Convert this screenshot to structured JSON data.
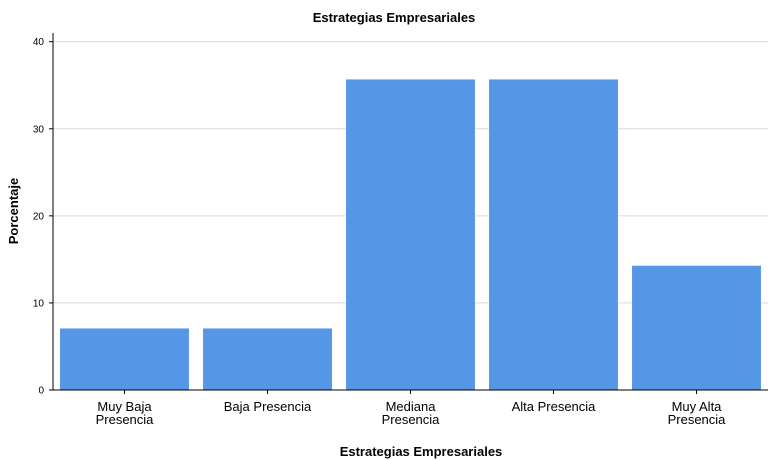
{
  "chart_data": {
    "type": "bar",
    "title": "Estrategias Empresariales",
    "xlabel": "Estrategias Empresariales",
    "ylabel": "Porcentaje",
    "categories": [
      [
        "Muy Baja",
        "Presencia"
      ],
      [
        "Baja Presencia"
      ],
      [
        "Mediana",
        "Presencia"
      ],
      [
        "Alta Presencia"
      ],
      [
        "Muy Alta",
        "Presencia"
      ]
    ],
    "values": [
      7.1,
      7.1,
      35.7,
      35.7,
      14.3
    ],
    "ylim": [
      0,
      41
    ],
    "yticks": [
      0,
      10,
      20,
      30,
      40
    ],
    "grid": true,
    "bar_color": "#5596e6"
  }
}
